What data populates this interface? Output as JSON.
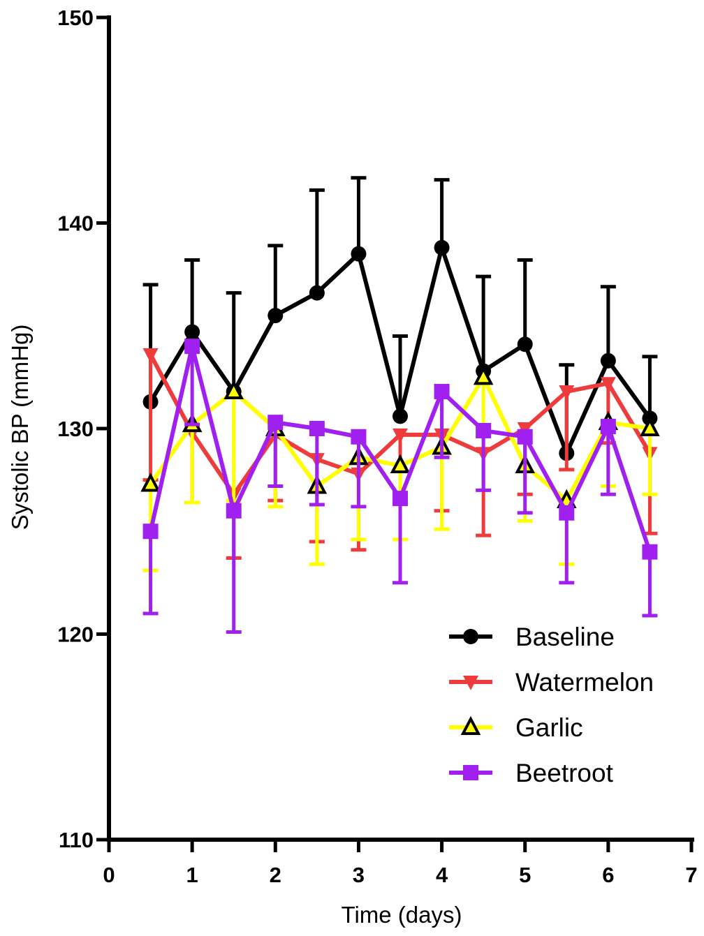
{
  "chart_data": {
    "type": "line",
    "xlabel": "Time (days)",
    "ylabel": "Systolic BP (mmHg)",
    "xlim": [
      0,
      7
    ],
    "ylim": [
      110,
      150
    ],
    "xticks": [
      "0",
      "1",
      "2",
      "3",
      "4",
      "5",
      "6",
      "7"
    ],
    "yticks": [
      "110",
      "120",
      "130",
      "140",
      "150"
    ],
    "grid": false,
    "legend_position": "bottom-right",
    "x": [
      0.5,
      1,
      1.5,
      2,
      2.5,
      3,
      3.5,
      4,
      4.5,
      5,
      5.5,
      6,
      6.5
    ],
    "series": [
      {
        "name": "Baseline",
        "color": "#000000",
        "marker": "circle",
        "values": [
          131.3,
          134.7,
          131.8,
          135.5,
          136.6,
          138.5,
          130.6,
          138.8,
          132.8,
          134.1,
          128.8,
          133.3,
          130.5
        ],
        "err": [
          5.7,
          3.5,
          4.8,
          3.4,
          5.0,
          3.7,
          3.9,
          3.3,
          4.6,
          4.1,
          4.3,
          3.6,
          3.0
        ],
        "err_dir": "up"
      },
      {
        "name": "Watermelon",
        "color": "#ee3b3b",
        "marker": "triangle-down",
        "values": [
          133.6,
          129.8,
          126.8,
          129.7,
          128.5,
          127.8,
          129.7,
          129.7,
          128.8,
          130.0,
          131.8,
          132.2,
          128.8
        ],
        "err": [
          6.1,
          3.4,
          3.1,
          3.2,
          4.0,
          3.7,
          3.0,
          3.7,
          4.0,
          3.2,
          3.8,
          2.9,
          3.9
        ],
        "err_dir": "down"
      },
      {
        "name": "Garlic",
        "color": "#ffff00",
        "marker": "triangle-up",
        "values": [
          127.3,
          130.2,
          131.8,
          130.0,
          127.2,
          128.6,
          128.2,
          129.1,
          132.5,
          128.2,
          126.5,
          130.3,
          130.0
        ],
        "err": [
          4.2,
          3.8,
          5.3,
          3.8,
          3.8,
          4.0,
          3.6,
          4.0,
          2.7,
          2.7,
          3.1,
          3.1,
          3.2
        ],
        "err_dir": "down"
      },
      {
        "name": "Beetroot",
        "color": "#a020f0",
        "marker": "square",
        "values": [
          125.0,
          134.0,
          126.0,
          130.3,
          130.0,
          129.6,
          126.6,
          131.8,
          129.9,
          129.6,
          125.9,
          130.1,
          124.0
        ],
        "err": [
          4.0,
          3.8,
          5.9,
          3.1,
          3.7,
          3.4,
          4.1,
          3.2,
          2.9,
          3.7,
          3.4,
          3.3,
          3.1
        ],
        "err_dir": "down"
      }
    ]
  }
}
